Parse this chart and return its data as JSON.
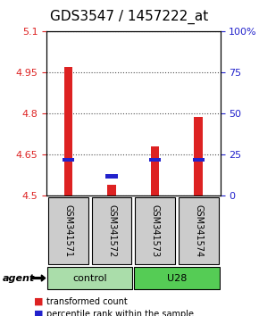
{
  "title": "GDS3547 / 1457222_at",
  "samples": [
    "GSM341571",
    "GSM341572",
    "GSM341573",
    "GSM341574"
  ],
  "groups": [
    "control",
    "control",
    "U28",
    "U28"
  ],
  "red_tops": [
    4.97,
    4.54,
    4.68,
    4.79
  ],
  "blue_tops": [
    4.625,
    4.565,
    4.625,
    4.625
  ],
  "bar_base": 4.5,
  "ylim_left": [
    4.5,
    5.1
  ],
  "ylim_right": [
    0,
    100
  ],
  "yticks_left": [
    4.5,
    4.65,
    4.8,
    4.95,
    5.1
  ],
  "yticks_right": [
    0,
    25,
    50,
    75,
    100
  ],
  "ytick_labels_left": [
    "4.5",
    "4.65",
    "4.8",
    "4.95",
    "5.1"
  ],
  "ytick_labels_right": [
    "0",
    "25",
    "50",
    "75",
    "100%"
  ],
  "red_color": "#dd2222",
  "blue_color": "#2222cc",
  "bar_width": 0.5,
  "group_colors": {
    "control": "#99ee99",
    "U28": "#44cc44"
  },
  "control_color": "#aaddaa",
  "u28_color": "#55cc55",
  "gray_box_color": "#cccccc",
  "legend_red": "transformed count",
  "legend_blue": "percentile rank within the sample",
  "agent_label": "agent",
  "group_label_fontsize": 9,
  "title_fontsize": 11,
  "figsize": [
    2.9,
    3.54
  ],
  "dpi": 100
}
